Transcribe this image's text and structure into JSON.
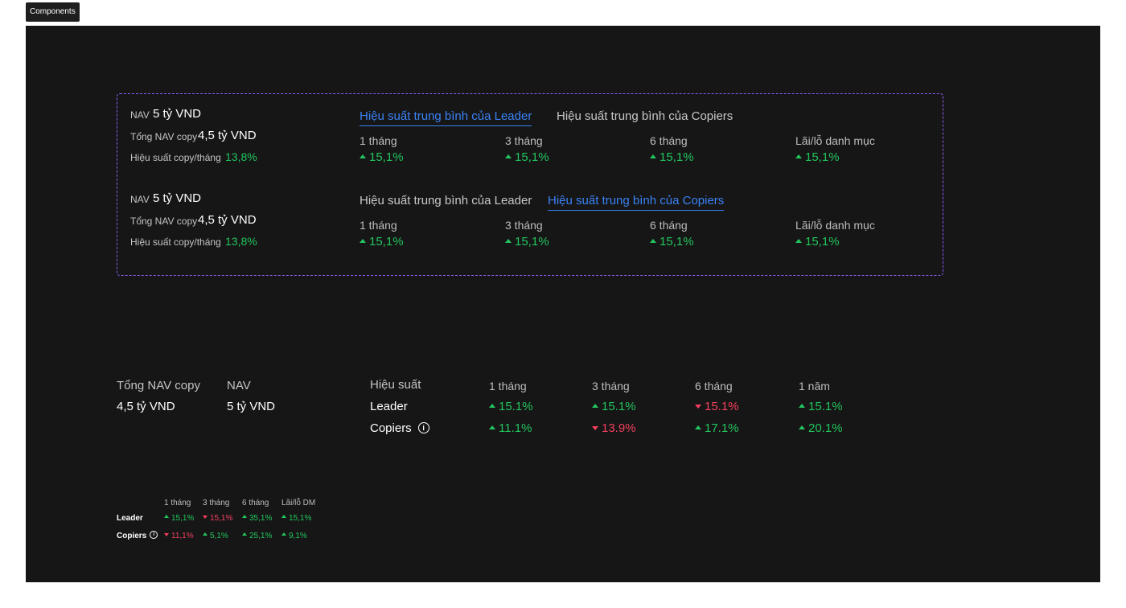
{
  "tag": "Components",
  "cards": [
    {
      "nav_label": "NAV",
      "nav_value": "5 tỷ VND",
      "total_label": "Tổng NAV copy",
      "total_value": "4,5 tỷ VND",
      "perf_label": "Hiệu suất copy/tháng",
      "perf_value": "13,8%",
      "tab_leader": "Hiệu suất trung bình của Leader",
      "tab_copiers": "Hiệu suất trung bình của Copiers",
      "active_tab": "leader",
      "periods": [
        {
          "label": "1 tháng",
          "value": "15,1%"
        },
        {
          "label": "3 tháng",
          "value": "15,1%"
        },
        {
          "label": "6 tháng",
          "value": "15,1%"
        },
        {
          "label": "Lãi/lỗ danh mục",
          "value": "15,1%"
        }
      ]
    },
    {
      "nav_label": "NAV",
      "nav_value": "5 tỷ VND",
      "total_label": "Tổng NAV copy",
      "total_value": "4,5 tỷ VND",
      "perf_label": "Hiệu suất copy/tháng",
      "perf_value": "13,8%",
      "tab_leader": "Hiệu suất trung bình của Leader",
      "tab_copiers": "Hiệu suất trung bình của Copiers",
      "active_tab": "copiers",
      "periods": [
        {
          "label": "1 tháng",
          "value": "15,1%"
        },
        {
          "label": "3 tháng",
          "value": "15,1%"
        },
        {
          "label": "6 tháng",
          "value": "15,1%"
        },
        {
          "label": "Lãi/lỗ danh mục",
          "value": "15,1%"
        }
      ]
    }
  ],
  "summary": {
    "total_label": "Tổng NAV copy",
    "total_value": "4,5 tỷ VND",
    "nav_label": "NAV",
    "nav_value": "5 tỷ VND",
    "perf_label": "Hiệu suất",
    "headers": [
      "1 tháng",
      "3 tháng",
      "6 tháng",
      "1 năm"
    ],
    "rows": [
      {
        "label": "Leader",
        "info": false,
        "values": [
          {
            "v": "15.1%",
            "dir": "up"
          },
          {
            "v": "15.1%",
            "dir": "up"
          },
          {
            "v": "15.1%",
            "dir": "down"
          },
          {
            "v": "15.1%",
            "dir": "up"
          }
        ]
      },
      {
        "label": "Copiers",
        "info": true,
        "values": [
          {
            "v": "11.1%",
            "dir": "up"
          },
          {
            "v": "13.9%",
            "dir": "down"
          },
          {
            "v": "17.1%",
            "dir": "up"
          },
          {
            "v": "20.1%",
            "dir": "up"
          }
        ]
      }
    ]
  },
  "compact": {
    "headers": [
      "1 tháng",
      "3 tháng",
      "6 tháng",
      "Lãi/lỗ DM"
    ],
    "rows": [
      {
        "label": "Leader",
        "info": false,
        "values": [
          {
            "v": "15,1%",
            "dir": "up"
          },
          {
            "v": "15,1%",
            "dir": "down"
          },
          {
            "v": "35,1%",
            "dir": "up"
          },
          {
            "v": "15,1%",
            "dir": "up"
          }
        ]
      },
      {
        "label": "Copiers",
        "info": true,
        "values": [
          {
            "v": "11,1%",
            "dir": "down"
          },
          {
            "v": "5,1%",
            "dir": "up"
          },
          {
            "v": "25,1%",
            "dir": "up"
          },
          {
            "v": "9,1%",
            "dir": "up"
          }
        ]
      }
    ]
  },
  "colors": {
    "up": "#22c55e",
    "down": "#f43f5e",
    "accent": "#3b82f6",
    "frame": "#161616",
    "dashed": "#8b5cf6"
  }
}
